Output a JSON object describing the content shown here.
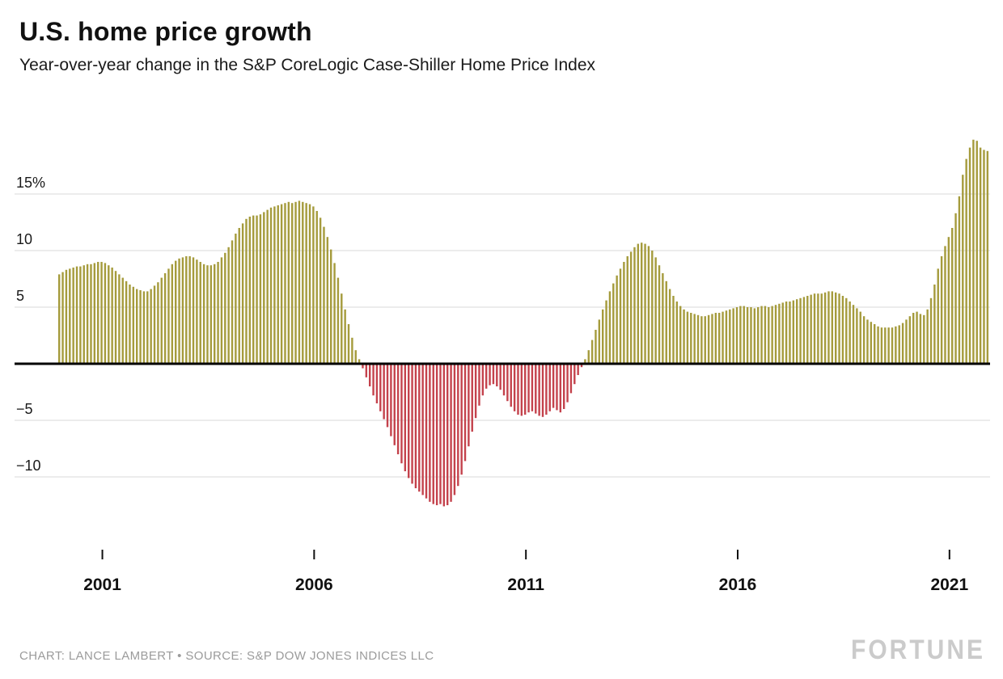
{
  "header": {
    "title": "U.S. home price growth",
    "subtitle": "Year-over-year change in the S&P CoreLogic Case-Shiller Home Price Index"
  },
  "footer": {
    "credit": "CHART: LANCE LAMBERT • SOURCE: S&P DOW JONES INDICES LLC",
    "brand": "FORTUNE"
  },
  "chart_data": {
    "type": "bar",
    "title": "U.S. home price growth",
    "subtitle": "Year-over-year change in the S&P CoreLogic Case-Shiller Home Price Index",
    "unit": "%",
    "frequency": "monthly",
    "start_year": 2000,
    "start_month": 1,
    "end_year": 2021,
    "end_month": 12,
    "ylim": [
      -14,
      21
    ],
    "grid": "horizontal",
    "legend": "none",
    "yticks": [
      {
        "value": 15,
        "label": "15%"
      },
      {
        "value": 10,
        "label": "10"
      },
      {
        "value": 5,
        "label": "5"
      },
      {
        "value": -5,
        "label": "−5"
      },
      {
        "value": -10,
        "label": "−10"
      }
    ],
    "xticks": [
      2001,
      2006,
      2011,
      2016,
      2021
    ],
    "colors": {
      "positive": "#a59b3c",
      "negative": "#c4424c",
      "zero_line": "#000000",
      "grid_line": "#d9d9d9"
    },
    "values": [
      7.9,
      8.1,
      8.3,
      8.4,
      8.5,
      8.6,
      8.6,
      8.7,
      8.8,
      8.8,
      8.9,
      9.0,
      9.0,
      8.9,
      8.7,
      8.5,
      8.2,
      7.9,
      7.6,
      7.3,
      7.0,
      6.8,
      6.6,
      6.5,
      6.4,
      6.4,
      6.6,
      6.9,
      7.2,
      7.6,
      8.0,
      8.4,
      8.8,
      9.1,
      9.3,
      9.4,
      9.5,
      9.5,
      9.4,
      9.2,
      9.0,
      8.8,
      8.7,
      8.7,
      8.8,
      9.0,
      9.4,
      9.8,
      10.3,
      10.9,
      11.5,
      12.0,
      12.4,
      12.8,
      13.0,
      13.1,
      13.1,
      13.2,
      13.4,
      13.6,
      13.8,
      13.9,
      14.0,
      14.1,
      14.2,
      14.3,
      14.2,
      14.3,
      14.4,
      14.3,
      14.2,
      14.1,
      13.9,
      13.5,
      12.9,
      12.1,
      11.2,
      10.1,
      8.9,
      7.6,
      6.2,
      4.8,
      3.5,
      2.3,
      1.2,
      0.4,
      -0.4,
      -1.2,
      -2.0,
      -2.8,
      -3.5,
      -4.2,
      -4.9,
      -5.6,
      -6.4,
      -7.2,
      -8.0,
      -8.8,
      -9.5,
      -10.1,
      -10.6,
      -11.0,
      -11.3,
      -11.6,
      -11.9,
      -12.2,
      -12.4,
      -12.5,
      -12.4,
      -12.6,
      -12.5,
      -12.2,
      -11.6,
      -10.8,
      -9.8,
      -8.6,
      -7.3,
      -6.0,
      -4.8,
      -3.7,
      -2.8,
      -2.2,
      -1.9,
      -1.8,
      -2.0,
      -2.3,
      -2.8,
      -3.3,
      -3.8,
      -4.2,
      -4.5,
      -4.6,
      -4.5,
      -4.3,
      -4.2,
      -4.4,
      -4.6,
      -4.7,
      -4.5,
      -4.2,
      -3.9,
      -4.1,
      -4.3,
      -4.0,
      -3.4,
      -2.6,
      -1.8,
      -1.0,
      -0.3,
      0.4,
      1.2,
      2.1,
      3.0,
      3.9,
      4.8,
      5.6,
      6.4,
      7.1,
      7.8,
      8.4,
      9.0,
      9.5,
      9.9,
      10.3,
      10.6,
      10.7,
      10.6,
      10.4,
      10.0,
      9.4,
      8.7,
      8.0,
      7.3,
      6.6,
      6.0,
      5.5,
      5.1,
      4.8,
      4.6,
      4.5,
      4.4,
      4.3,
      4.2,
      4.2,
      4.3,
      4.4,
      4.5,
      4.5,
      4.6,
      4.7,
      4.8,
      4.9,
      5.0,
      5.1,
      5.1,
      5.0,
      5.0,
      4.9,
      5.0,
      5.1,
      5.1,
      5.0,
      5.1,
      5.2,
      5.3,
      5.4,
      5.5,
      5.5,
      5.6,
      5.7,
      5.8,
      5.9,
      6.0,
      6.1,
      6.2,
      6.2,
      6.2,
      6.3,
      6.4,
      6.4,
      6.3,
      6.2,
      6.0,
      5.8,
      5.5,
      5.2,
      4.9,
      4.6,
      4.2,
      3.9,
      3.7,
      3.5,
      3.3,
      3.2,
      3.2,
      3.2,
      3.2,
      3.3,
      3.4,
      3.6,
      3.9,
      4.2,
      4.5,
      4.6,
      4.4,
      4.3,
      4.8,
      5.8,
      7.0,
      8.4,
      9.5,
      10.4,
      11.2,
      12.0,
      13.3,
      14.8,
      16.7,
      18.1,
      19.1,
      19.8,
      19.7,
      19.1,
      18.9,
      18.8
    ]
  }
}
